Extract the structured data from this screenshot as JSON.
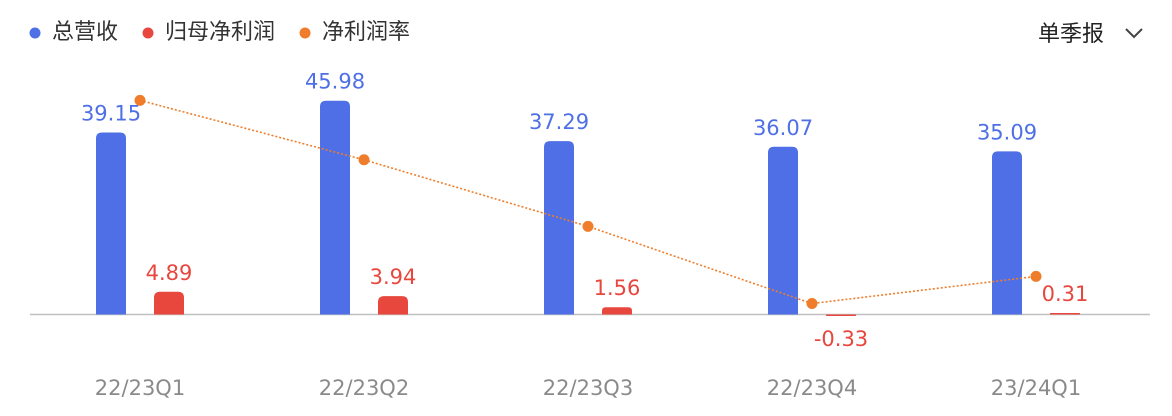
{
  "chart_data": {
    "type": "bar",
    "categories": [
      "22/23Q1",
      "22/23Q2",
      "22/23Q3",
      "22/23Q4",
      "23/24Q1"
    ],
    "series": [
      {
        "name": "总营收",
        "color": "#4e6fe6",
        "type": "bar",
        "values": [
          39.15,
          45.98,
          37.29,
          36.07,
          35.09
        ]
      },
      {
        "name": "归母净利润",
        "color": "#e8473d",
        "type": "bar",
        "values": [
          4.89,
          3.94,
          1.56,
          -0.33,
          0.31
        ]
      },
      {
        "name": "净利润率",
        "color": "#ef7d2b",
        "type": "line",
        "axis": "y2",
        "values": [
          12.49,
          8.57,
          4.18,
          -0.91,
          0.88
        ]
      }
    ],
    "ylim": [
      -10,
      50
    ],
    "y2lim": [
      -4.7,
      13.7
    ],
    "grid": false
  },
  "controls": {
    "period": "单季报"
  }
}
